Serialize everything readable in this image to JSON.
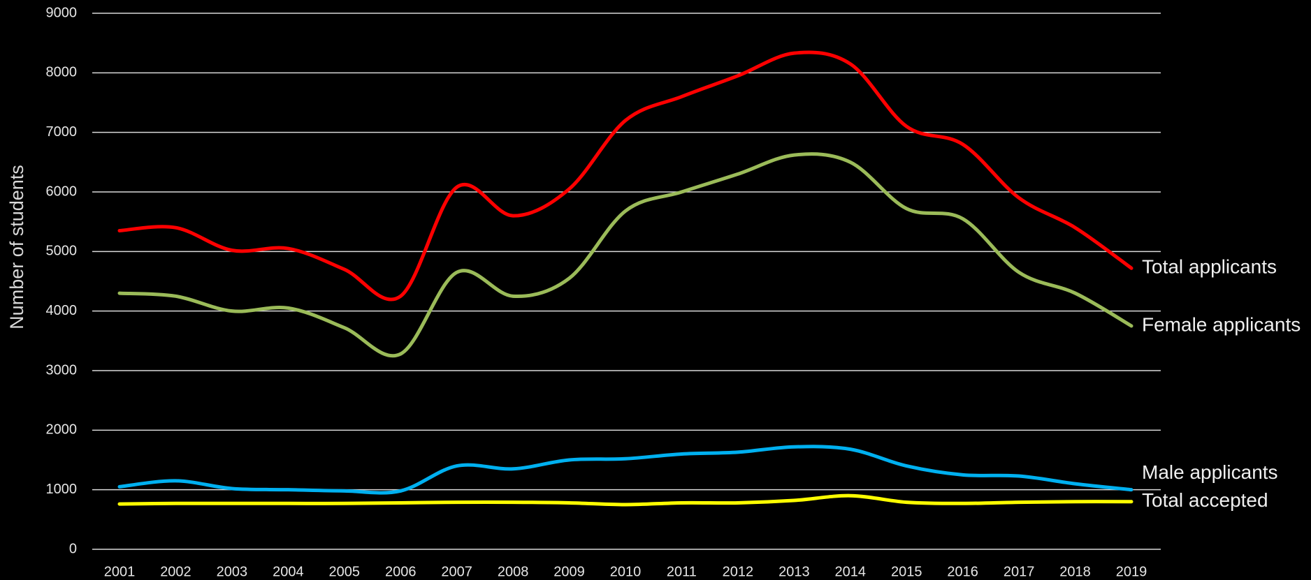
{
  "chart_data": {
    "type": "line",
    "y_label": "Number of students",
    "categories": [
      "2001",
      "2002",
      "2003",
      "2004",
      "2005",
      "2006",
      "2007",
      "2008",
      "2009",
      "2010",
      "2011",
      "2012",
      "2013",
      "2014",
      "2015",
      "2016",
      "2017",
      "2018",
      "2019"
    ],
    "series": [
      {
        "name": "Total applicants",
        "color": "#ff0000",
        "values": [
          5350,
          5400,
          5020,
          5050,
          4700,
          4250,
          6080,
          5600,
          6050,
          7200,
          7600,
          7950,
          8330,
          8150,
          7100,
          6800,
          5900,
          5400,
          4720
        ]
      },
      {
        "name": "Female applicants",
        "color": "#9bbb59",
        "values": [
          4300,
          4250,
          4000,
          4050,
          3720,
          3280,
          4650,
          4250,
          4550,
          5680,
          6000,
          6300,
          6620,
          6500,
          5720,
          5550,
          4650,
          4300,
          3750
        ]
      },
      {
        "name": "Male applicants",
        "color": "#00b0f0",
        "values": [
          1050,
          1150,
          1020,
          1000,
          980,
          980,
          1400,
          1350,
          1500,
          1520,
          1600,
          1630,
          1720,
          1680,
          1400,
          1250,
          1230,
          1100,
          1000
        ]
      },
      {
        "name": "Total accepted",
        "color": "#ffff00",
        "values": [
          760,
          770,
          770,
          770,
          770,
          780,
          790,
          790,
          780,
          750,
          780,
          780,
          820,
          900,
          790,
          770,
          790,
          800,
          800
        ]
      }
    ],
    "ylim": [
      0,
      9000
    ],
    "yticks": [
      0,
      1000,
      2000,
      3000,
      4000,
      5000,
      6000,
      7000,
      8000,
      9000
    ],
    "grid": true
  }
}
